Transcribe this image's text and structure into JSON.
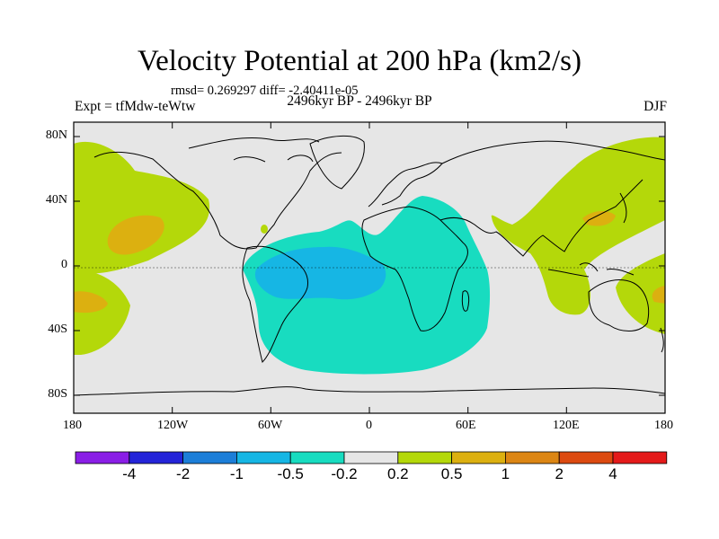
{
  "title": "Velocity Potential at 200 hPa (km2/s)",
  "subtitle": "rmsd= 0.269297  diff= -2.40411e-05",
  "left_header": "Expt = tfMdw-teWtw",
  "center_header": "2496kyr BP - 2496kyr BP",
  "right_header": "DJF",
  "lat_labels": [
    "80N",
    "40N",
    "0",
    "40S",
    "80S"
  ],
  "lon_labels": [
    "180",
    "120W",
    "60W",
    "0",
    "60E",
    "120E",
    "180"
  ],
  "colorbar": {
    "labels": [
      "-4",
      "-2",
      "-1",
      "-0.5",
      "-0.2",
      "0.2",
      "0.5",
      "1",
      "2",
      "4"
    ],
    "colors": [
      "#8a1ee6",
      "#2424d8",
      "#1c7ed8",
      "#16b6e4",
      "#18dcc0",
      "#e6e6e6",
      "#b4d80a",
      "#dcb010",
      "#dc8614",
      "#dc4a10",
      "#e41a1a"
    ]
  },
  "field_colors": {
    "background": "#e6e6e6",
    "neg_0_2": "#18dcc0",
    "neg_0_5": "#16b6e4",
    "pos_0_2": "#b4d80a",
    "pos_0_5": "#dcb010"
  }
}
